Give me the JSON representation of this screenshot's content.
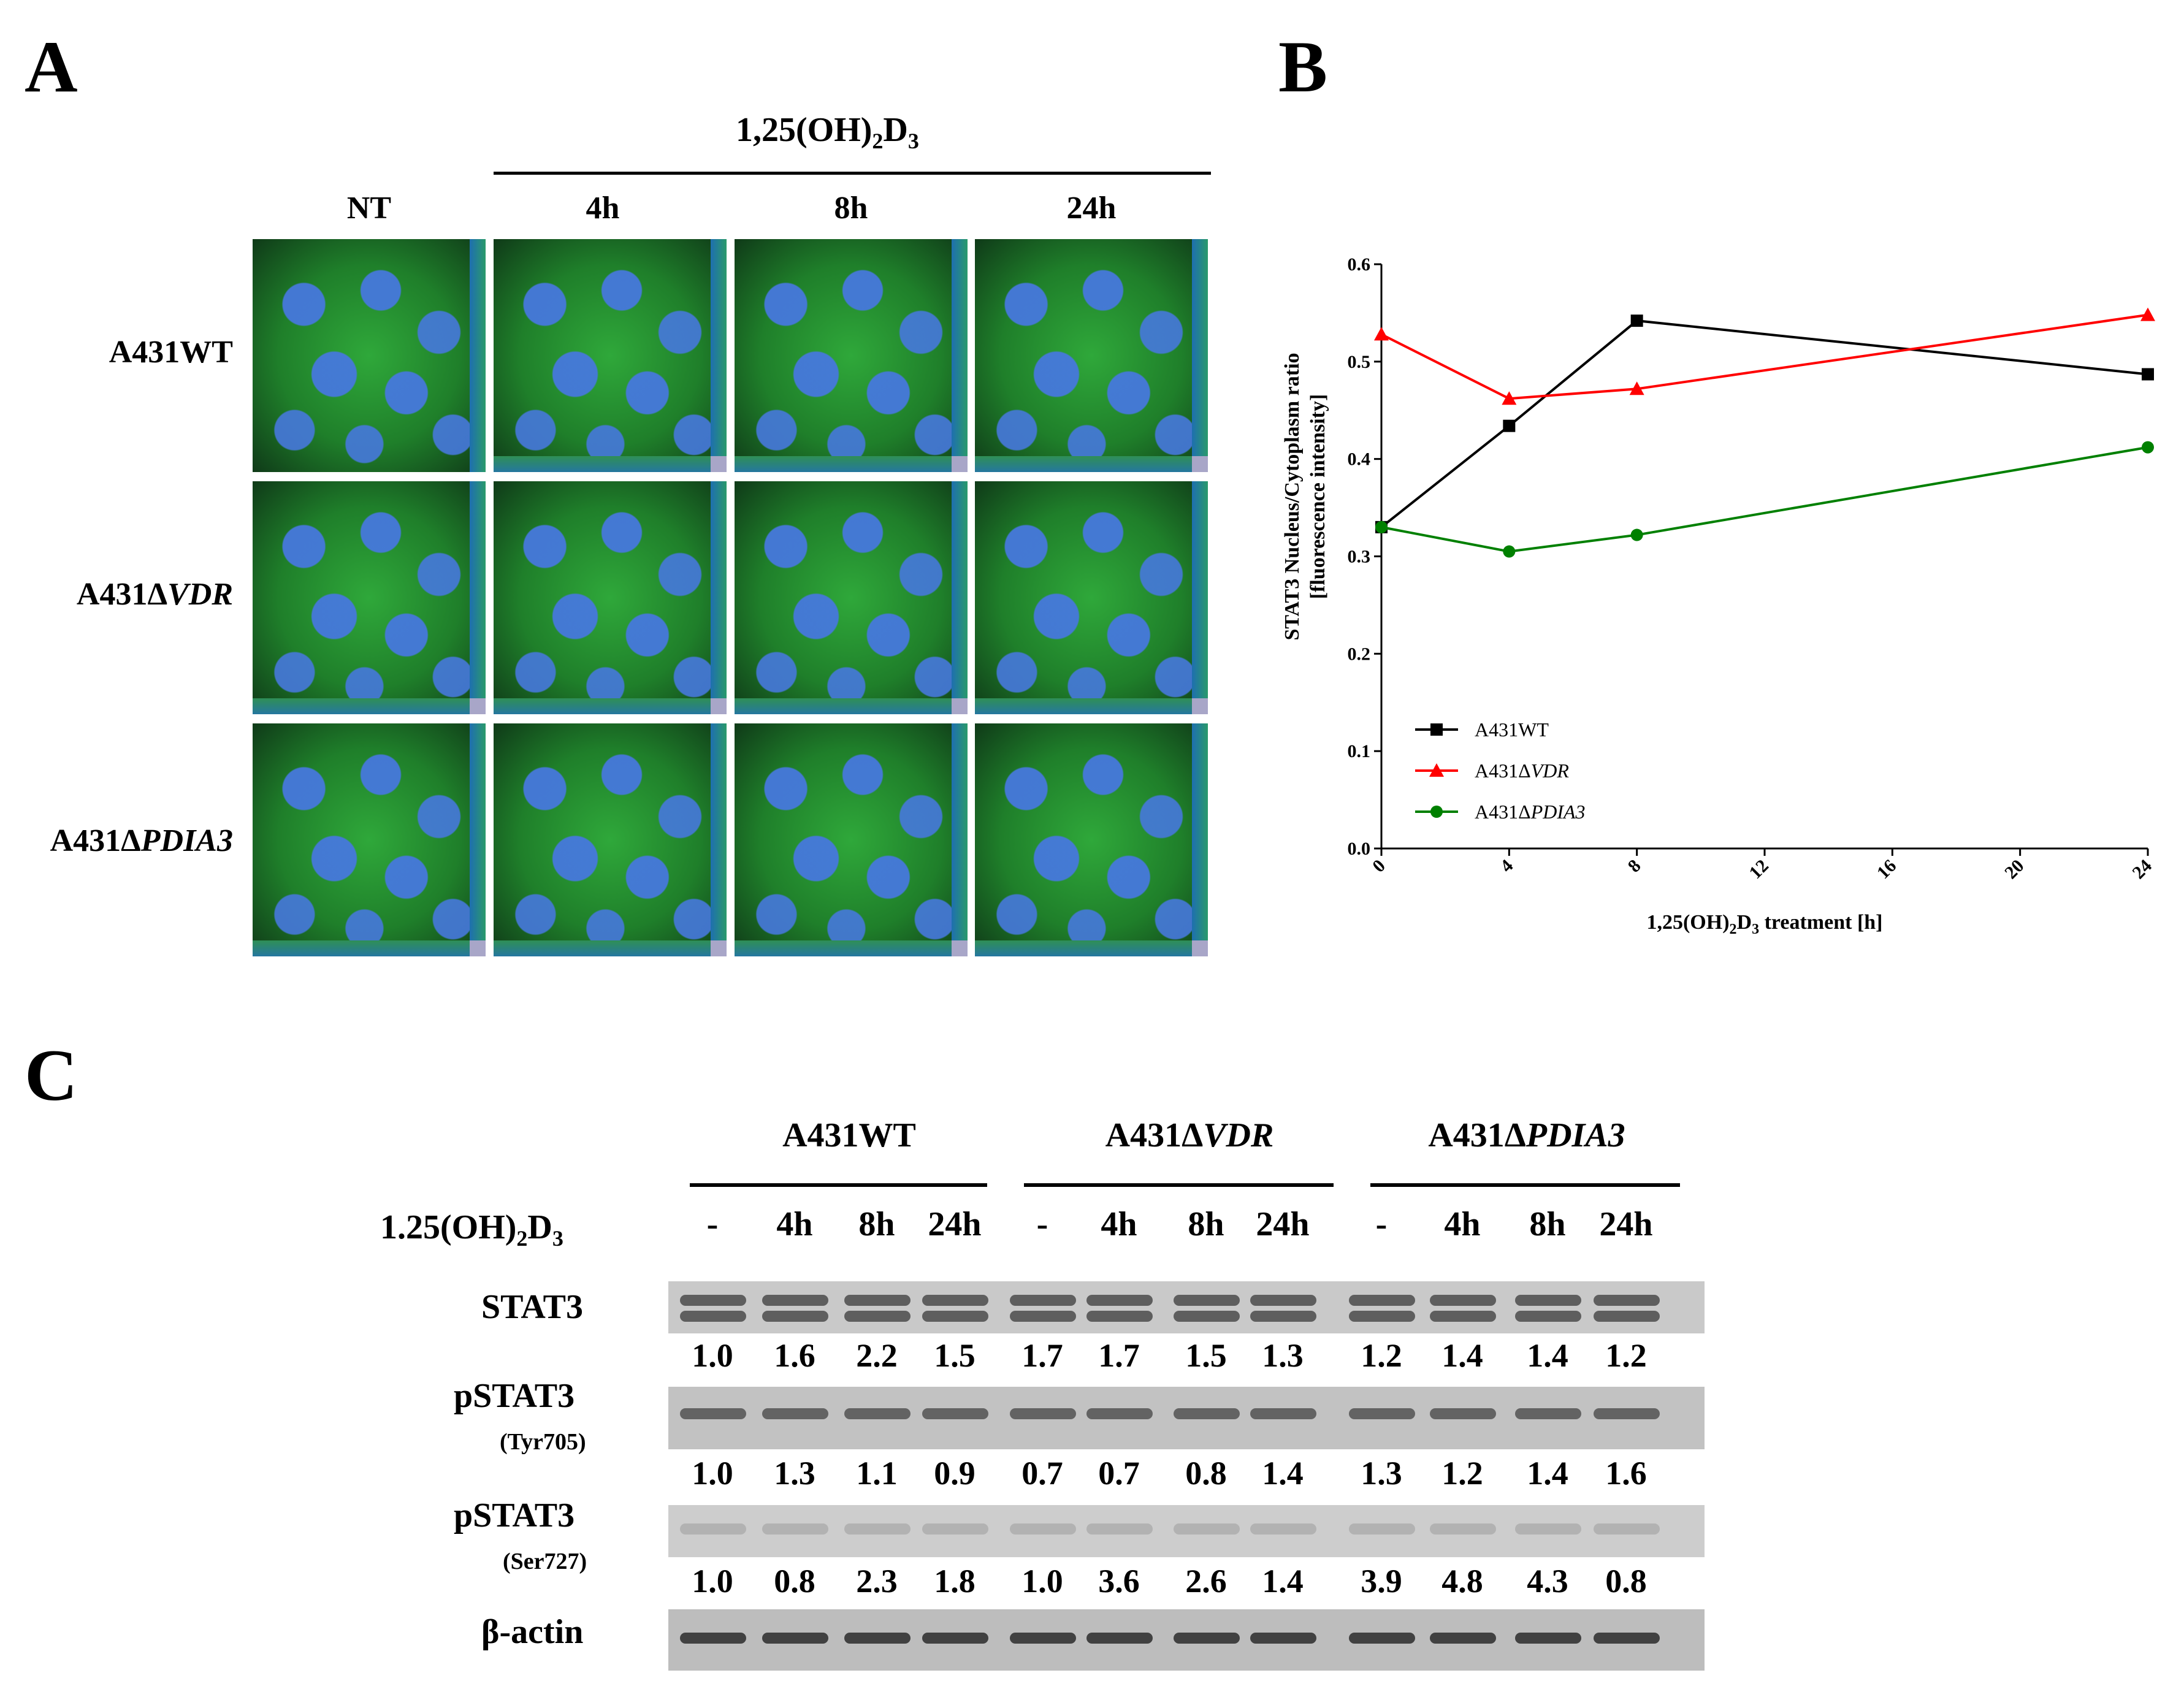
{
  "panel_a": {
    "letter": "A",
    "treatment": {
      "main": "1,25(OH)",
      "sub1": "2",
      "mid": "D",
      "sub2": "3"
    },
    "columns": [
      "NT",
      "4h",
      "8h",
      "24h"
    ],
    "rows": [
      {
        "prefix": "A431WT",
        "italic": ""
      },
      {
        "prefix": "A431Δ",
        "italic": "VDR"
      },
      {
        "prefix": "A431Δ",
        "italic": "PDIA3"
      }
    ]
  },
  "panel_b": {
    "letter": "B",
    "xlabel": {
      "main": "1,25(OH)",
      "sub1": "2",
      "mid": "D",
      "sub2": "3",
      "tail": " treatment [h]"
    },
    "ylabel_line1": "STAT3 Nucleus/Cytoplasm ratio",
    "ylabel_line2": "[fluorescence intensity]"
  },
  "chart_data": {
    "type": "line",
    "x": [
      0,
      4,
      8,
      24
    ],
    "series": [
      {
        "name": "A431WT",
        "prefix": "A431WT",
        "italic": "",
        "marker": "square",
        "color": "#000000",
        "values": [
          0.33,
          0.434,
          0.542,
          0.487
        ]
      },
      {
        "name": "A431ΔVDR",
        "prefix": "A431Δ",
        "italic": "VDR",
        "marker": "triangle",
        "color": "#ff0000",
        "values": [
          0.528,
          0.462,
          0.472,
          0.548
        ]
      },
      {
        "name": "A431ΔPDIA3",
        "prefix": "A431Δ",
        "italic": "PDIA3",
        "marker": "circle",
        "color": "#008000",
        "values": [
          0.33,
          0.305,
          0.322,
          0.412
        ]
      }
    ],
    "xticks": [
      "0",
      "4",
      "8",
      "12",
      "16",
      "20",
      "24"
    ],
    "yticks": [
      "0.0",
      "0.1",
      "0.2",
      "0.3",
      "0.4",
      "0.5",
      "0.6"
    ],
    "xlim": [
      0,
      24
    ],
    "ylim": [
      0,
      0.6
    ],
    "xlabel": "1,25(OH)2D3 treatment [h]",
    "ylabel": "STAT3 Nucleus/Cytoplasm ratio [fluorescence intensity]",
    "legend": "bottom-left"
  },
  "panel_c": {
    "letter": "C",
    "groups": [
      {
        "prefix": "A431WT",
        "italic": ""
      },
      {
        "prefix": "A431Δ",
        "italic": "VDR"
      },
      {
        "prefix": "A431Δ",
        "italic": "PDIA3"
      }
    ],
    "treatment": {
      "main": "1.25(OH)",
      "sub1": "2",
      "mid": "D",
      "sub2": "3"
    },
    "lanes": [
      "-",
      "4h",
      "8h",
      "24h",
      "-",
      "4h",
      "8h",
      "24h",
      "-",
      "4h",
      "8h",
      "24h"
    ],
    "blots": [
      {
        "label": "STAT3",
        "sublabel": "",
        "quant": [
          "1.0",
          "1.6",
          "2.2",
          "1.5",
          "1.7",
          "1.7",
          "1.5",
          "1.3",
          "1.2",
          "1.4",
          "1.4",
          "1.2"
        ]
      },
      {
        "label": "pSTAT3",
        "sublabel": "(Tyr705)",
        "quant": [
          "1.0",
          "1.3",
          "1.1",
          "0.9",
          "0.7",
          "0.7",
          "0.8",
          "1.4",
          "1.3",
          "1.2",
          "1.4",
          "1.6"
        ]
      },
      {
        "label": "pSTAT3",
        "sublabel": "(Ser727)",
        "quant": [
          "1.0",
          "0.8",
          "2.3",
          "1.8",
          "1.0",
          "3.6",
          "2.6",
          "1.4",
          "3.9",
          "4.8",
          "4.3",
          "0.8"
        ]
      },
      {
        "label": "β-actin",
        "sublabel": "",
        "quant": []
      }
    ]
  }
}
